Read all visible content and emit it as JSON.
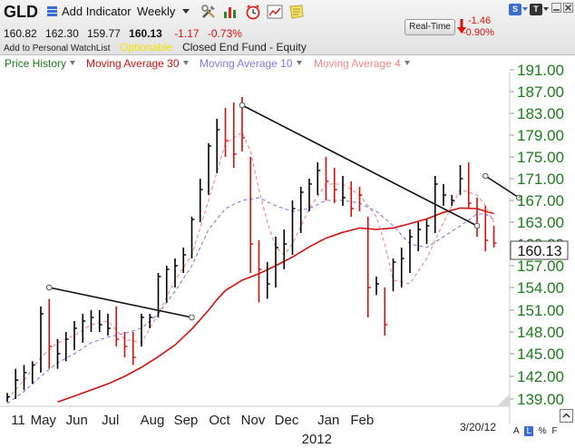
{
  "toolbar": {
    "symbol": "GLD",
    "add_indicator": "Add Indicator",
    "period": "Weekly"
  },
  "quote": {
    "open": "160.82",
    "high": "162.30",
    "low": "159.77",
    "last": "160.13",
    "change": "-1.17",
    "change_pct": "-0.73%",
    "watchlist_label": "Add to Personal WatchList",
    "optionable": "Optionable",
    "fund_type": "Closed End Fund - Equity"
  },
  "realtime": {
    "button": "Real-Time",
    "change": "-1.46",
    "change_pct": "-0.90%"
  },
  "corner_buttons": {
    "s_label": "S",
    "t_label": "T"
  },
  "legend": {
    "price_history": "Price History",
    "ma30": "Moving Average 30",
    "ma10": "Moving Average 10",
    "ma4": "Moving Average 4"
  },
  "footer": {
    "date": "3/20/12",
    "a": "A",
    "l": "L",
    "pct": "%",
    "f": "F"
  },
  "colors": {
    "up_bar": "#000000",
    "down_bar": "#d21010",
    "ma30": "#d21010",
    "ma10": "#8080e0",
    "ma4": "#f08a8a",
    "axis_text": "#1e7a1e",
    "price_history_text": "#1e7a1e"
  },
  "chart_data": {
    "type": "ohlc",
    "yticks": [
      139.0,
      142.0,
      145.0,
      148.0,
      151.0,
      154.0,
      157.0,
      160.0,
      163.0,
      167.0,
      171.0,
      175.0,
      179.0,
      183.0,
      187.0,
      191.0
    ],
    "ytick_labels": [
      "139.00",
      "142.00",
      "145.00",
      "148.00",
      "151.00",
      "154.00",
      "157.00",
      "160.00",
      "163.00",
      "167.00",
      "171.00",
      "175.00",
      "179.00",
      "183.00",
      "187.00",
      "191.00"
    ],
    "current_price": "160.13",
    "x_labels": [
      {
        "label": "11",
        "week": 0
      },
      {
        "label": "May",
        "week": 3
      },
      {
        "label": "Jun",
        "week": 7
      },
      {
        "label": "Jul",
        "week": 11
      },
      {
        "label": "Aug",
        "week": 16
      },
      {
        "label": "Sep",
        "week": 20
      },
      {
        "label": "Oct",
        "week": 24
      },
      {
        "label": "Nov",
        "week": 28
      },
      {
        "label": "Dec",
        "week": 32
      },
      {
        "label": "Jan",
        "week": 37
      },
      {
        "label": "Feb",
        "week": 41
      },
      {
        "label": "2012",
        "week": 35.6
      }
    ],
    "bars": [
      {
        "h": 139.8,
        "l": 138.6,
        "c": 139.3,
        "up": true
      },
      {
        "h": 143.0,
        "l": 139.0,
        "c": 141.5,
        "up": true
      },
      {
        "h": 143.5,
        "l": 140.2,
        "c": 142.5,
        "up": true
      },
      {
        "h": 144.0,
        "l": 141.0,
        "c": 143.5,
        "up": true
      },
      {
        "h": 151.5,
        "l": 142.5,
        "c": 150.5,
        "up": true
      },
      {
        "h": 152.5,
        "l": 143.0,
        "c": 146.0,
        "up": false
      },
      {
        "h": 147.0,
        "l": 143.0,
        "c": 145.0,
        "up": true
      },
      {
        "h": 148.0,
        "l": 144.0,
        "c": 147.0,
        "up": true
      },
      {
        "h": 149.5,
        "l": 145.5,
        "c": 148.5,
        "up": true
      },
      {
        "h": 150.5,
        "l": 146.5,
        "c": 149.5,
        "up": true
      },
      {
        "h": 151.0,
        "l": 148.0,
        "c": 150.0,
        "up": true
      },
      {
        "h": 151.0,
        "l": 148.0,
        "c": 149.0,
        "up": true
      },
      {
        "h": 150.5,
        "l": 147.5,
        "c": 148.5,
        "up": true
      },
      {
        "h": 151.5,
        "l": 146.0,
        "c": 147.0,
        "up": false
      },
      {
        "h": 148.0,
        "l": 144.5,
        "c": 146.0,
        "up": false
      },
      {
        "h": 148.0,
        "l": 143.5,
        "c": 144.5,
        "up": false
      },
      {
        "h": 150.5,
        "l": 146.0,
        "c": 150.0,
        "up": true
      },
      {
        "h": 150.5,
        "l": 148.5,
        "c": 150.0,
        "up": true
      },
      {
        "h": 156.0,
        "l": 150.0,
        "c": 155.5,
        "up": true
      },
      {
        "h": 157.0,
        "l": 152.0,
        "c": 156.5,
        "up": true
      },
      {
        "h": 158.0,
        "l": 154.0,
        "c": 157.0,
        "up": true
      },
      {
        "h": 159.5,
        "l": 156.0,
        "c": 158.5,
        "up": true
      },
      {
        "h": 164.0,
        "l": 158.0,
        "c": 163.5,
        "up": true
      },
      {
        "h": 171.0,
        "l": 163.0,
        "c": 169.0,
        "up": true
      },
      {
        "h": 177.5,
        "l": 168.0,
        "c": 177.0,
        "up": true
      },
      {
        "h": 182.0,
        "l": 172.0,
        "c": 180.0,
        "up": true
      },
      {
        "h": 184.0,
        "l": 175.0,
        "c": 178.0,
        "up": false
      },
      {
        "h": 185.0,
        "l": 173.0,
        "c": 175.5,
        "up": false
      },
      {
        "h": 186.0,
        "l": 176.0,
        "c": 178.5,
        "up": false
      },
      {
        "h": 175.0,
        "l": 156.0,
        "c": 160.0,
        "up": false
      },
      {
        "h": 160.5,
        "l": 152.0,
        "c": 156.5,
        "up": false
      },
      {
        "h": 157.5,
        "l": 152.5,
        "c": 154.5,
        "up": true
      },
      {
        "h": 161.0,
        "l": 154.0,
        "c": 159.5,
        "up": true
      },
      {
        "h": 162.0,
        "l": 156.5,
        "c": 160.0,
        "up": true
      },
      {
        "h": 167.0,
        "l": 158.5,
        "c": 165.5,
        "up": true
      },
      {
        "h": 169.5,
        "l": 161.5,
        "c": 168.5,
        "up": true
      },
      {
        "h": 171.0,
        "l": 165.0,
        "c": 170.0,
        "up": true
      },
      {
        "h": 174.0,
        "l": 168.0,
        "c": 172.5,
        "up": true
      },
      {
        "h": 175.0,
        "l": 167.0,
        "c": 170.5,
        "up": false
      },
      {
        "h": 173.0,
        "l": 166.5,
        "c": 169.0,
        "up": false
      },
      {
        "h": 171.5,
        "l": 166.0,
        "c": 167.5,
        "up": true
      },
      {
        "h": 170.5,
        "l": 164.0,
        "c": 165.5,
        "up": false
      },
      {
        "h": 169.5,
        "l": 165.0,
        "c": 168.0,
        "up": false
      },
      {
        "h": 164.0,
        "l": 150.0,
        "c": 154.0,
        "up": false
      },
      {
        "h": 155.5,
        "l": 153.0,
        "c": 154.5,
        "up": true
      },
      {
        "h": 154.0,
        "l": 147.5,
        "c": 149.0,
        "up": false
      },
      {
        "h": 158.0,
        "l": 153.5,
        "c": 157.5,
        "up": true
      },
      {
        "h": 159.5,
        "l": 154.0,
        "c": 158.0,
        "up": true
      },
      {
        "h": 162.0,
        "l": 156.0,
        "c": 161.0,
        "up": true
      },
      {
        "h": 163.0,
        "l": 159.0,
        "c": 162.0,
        "up": true
      },
      {
        "h": 163.5,
        "l": 160.0,
        "c": 162.5,
        "up": true
      },
      {
        "h": 171.5,
        "l": 161.5,
        "c": 170.0,
        "up": true
      },
      {
        "h": 170.0,
        "l": 166.0,
        "c": 168.0,
        "up": true
      },
      {
        "h": 168.0,
        "l": 166.0,
        "c": 167.0,
        "up": true
      },
      {
        "h": 173.5,
        "l": 168.0,
        "c": 171.0,
        "up": true
      },
      {
        "h": 174.0,
        "l": 165.5,
        "c": 166.5,
        "up": false
      },
      {
        "h": 167.5,
        "l": 161.0,
        "c": 162.5,
        "up": false
      },
      {
        "h": 166.0,
        "l": 159.0,
        "c": 160.5,
        "up": false
      },
      {
        "h": 162.5,
        "l": 159.5,
        "c": 160.13,
        "up": false
      }
    ],
    "ma30": [
      null,
      null,
      null,
      null,
      null,
      null,
      null,
      null,
      null,
      null,
      null,
      null,
      null,
      null,
      null,
      null,
      null,
      null,
      null,
      null,
      null,
      null,
      null,
      null,
      null,
      null,
      null,
      null,
      null,
      null,
      null,
      null,
      null,
      null,
      null,
      null,
      null,
      null,
      null,
      null,
      null,
      null,
      null,
      null,
      null,
      null,
      null,
      null,
      null,
      null,
      null,
      null,
      null,
      null,
      null,
      null,
      null,
      null,
      null
    ],
    "ma_points": {
      "ma30": [
        [
          6,
          138.6
        ],
        [
          8,
          139.4
        ],
        [
          10,
          140.2
        ],
        [
          12,
          141.0
        ],
        [
          14,
          142.0
        ],
        [
          16,
          143.2
        ],
        [
          18,
          144.6
        ],
        [
          20,
          146.2
        ],
        [
          22,
          148.4
        ],
        [
          24,
          151.0
        ],
        [
          25,
          152.4
        ],
        [
          26,
          153.6
        ],
        [
          28,
          155.0
        ],
        [
          30,
          155.9
        ],
        [
          32,
          157.0
        ],
        [
          34,
          158.2
        ],
        [
          36,
          159.6
        ],
        [
          38,
          160.8
        ],
        [
          40,
          161.6
        ],
        [
          42,
          162.2
        ],
        [
          44,
          162.0
        ],
        [
          46,
          162.2
        ],
        [
          48,
          162.8
        ],
        [
          50,
          163.6
        ],
        [
          52,
          164.8
        ],
        [
          54,
          165.6
        ],
        [
          56,
          165.5
        ],
        [
          57,
          165.0
        ],
        [
          58,
          164.6
        ]
      ],
      "ma10": [
        [
          0,
          138.4
        ],
        [
          2,
          140.0
        ],
        [
          4,
          142.0
        ],
        [
          6,
          143.8
        ],
        [
          8,
          145.0
        ],
        [
          10,
          146.5
        ],
        [
          12,
          147.3
        ],
        [
          14,
          147.8
        ],
        [
          16,
          148.5
        ],
        [
          18,
          150.5
        ],
        [
          20,
          153.5
        ],
        [
          22,
          157.0
        ],
        [
          24,
          162.0
        ],
        [
          26,
          165.5
        ],
        [
          28,
          167.0
        ],
        [
          30,
          167.5
        ],
        [
          32,
          166.0
        ],
        [
          34,
          165.0
        ],
        [
          36,
          165.5
        ],
        [
          38,
          167.0
        ],
        [
          40,
          167.0
        ],
        [
          42,
          166.5
        ],
        [
          44,
          165.0
        ],
        [
          46,
          162.5
        ],
        [
          48,
          160.0
        ],
        [
          50,
          159.5
        ],
        [
          52,
          161.0
        ],
        [
          54,
          162.5
        ],
        [
          56,
          164.5
        ],
        [
          57,
          164.5
        ],
        [
          58,
          163.5
        ]
      ],
      "ma4": [
        [
          0,
          139.0
        ],
        [
          2,
          141.5
        ],
        [
          4,
          144.5
        ],
        [
          6,
          146.5
        ],
        [
          8,
          147.5
        ],
        [
          10,
          149.0
        ],
        [
          12,
          149.5
        ],
        [
          14,
          147.0
        ],
        [
          16,
          146.5
        ],
        [
          18,
          150.5
        ],
        [
          20,
          155.0
        ],
        [
          22,
          158.5
        ],
        [
          24,
          167.0
        ],
        [
          26,
          177.5
        ],
        [
          28,
          179.5
        ],
        [
          29,
          176.0
        ],
        [
          30,
          169.0
        ],
        [
          31,
          163.0
        ],
        [
          32,
          159.5
        ],
        [
          33,
          158.5
        ],
        [
          34,
          160.0
        ],
        [
          36,
          165.5
        ],
        [
          38,
          170.0
        ],
        [
          40,
          170.0
        ],
        [
          42,
          168.0
        ],
        [
          44,
          164.0
        ],
        [
          45,
          160.0
        ],
        [
          46,
          155.0
        ],
        [
          48,
          154.5
        ],
        [
          50,
          158.0
        ],
        [
          52,
          163.0
        ],
        [
          54,
          169.0
        ],
        [
          56,
          168.0
        ],
        [
          57,
          166.0
        ],
        [
          58,
          163.0
        ]
      ]
    },
    "trendlines": [
      [
        [
          5,
          154.0
        ],
        [
          22,
          150.0
        ]
      ],
      [
        [
          28,
          184.5
        ],
        [
          56,
          162.5
        ]
      ],
      [
        [
          57,
          171.5
        ],
        [
          61,
          167.5
        ]
      ]
    ]
  }
}
